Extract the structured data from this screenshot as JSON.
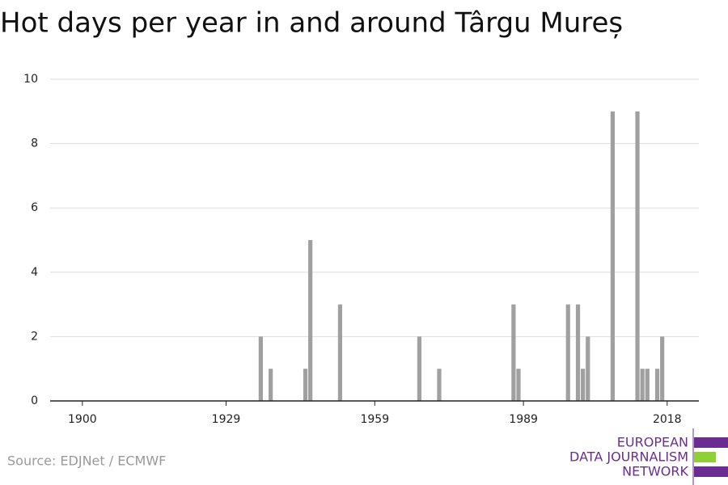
{
  "chart_data": {
    "type": "bar",
    "title": "Hot days per year in and around Târgu Mureș",
    "source": "Source: EDJNet / ECMWF",
    "logo": [
      "EUROPEAN",
      "DATA JOURNALISM",
      "NETWORK"
    ],
    "x": [
      1936,
      1938,
      1945,
      1946,
      1952,
      1968,
      1972,
      1987,
      1988,
      1998,
      2000,
      2001,
      2002,
      2007,
      2012,
      2013,
      2014,
      2016,
      2017
    ],
    "values": [
      2,
      1,
      1,
      5,
      3,
      2,
      1,
      3,
      1,
      3,
      3,
      1,
      2,
      9,
      9,
      1,
      1,
      1,
      2
    ],
    "color": "#a0a0a0",
    "xlim": [
      1893.5,
      2024.4
    ],
    "xticks": [
      1900,
      1929,
      1959,
      1989,
      2018
    ],
    "ylim": [
      0,
      10
    ],
    "yticks": [
      0,
      2,
      4,
      6,
      8,
      10
    ],
    "grid": true
  }
}
